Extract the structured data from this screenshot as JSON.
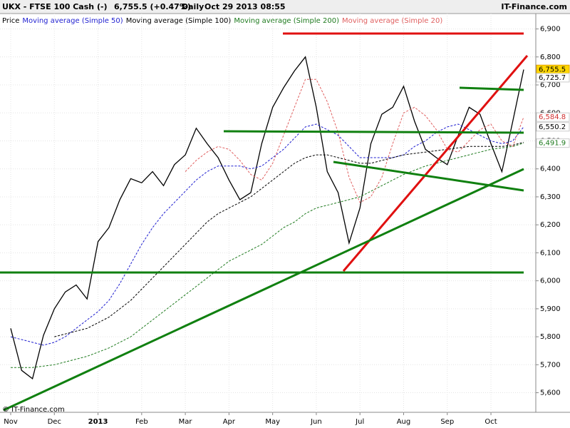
{
  "chart_data": {
    "type": "line",
    "title": "UKX - FTSE 100 Cash (-)",
    "quote": "6,755.5 (+0.47%)",
    "timeframe": "Daily",
    "date": "Oct 29 2013 08:55",
    "source": "IT-Finance.com",
    "copyright": "© IT-Finance.com",
    "categories": [
      "Nov",
      null,
      null,
      null,
      "Dec",
      null,
      null,
      null,
      "2013",
      null,
      null,
      null,
      "Feb",
      null,
      null,
      null,
      "Mar",
      null,
      null,
      null,
      "Apr",
      null,
      null,
      null,
      "May",
      null,
      null,
      null,
      "Jun",
      null,
      null,
      null,
      "Jul",
      null,
      null,
      null,
      "Aug",
      null,
      null,
      null,
      "Sep",
      null,
      null,
      null,
      "Oct",
      null,
      null,
      null
    ],
    "series": [
      {
        "name": "Price",
        "color": "#000000",
        "dashed": false,
        "values": [
          5830,
          5680,
          5650,
          5805,
          5900,
          5960,
          5985,
          5935,
          6140,
          6190,
          6290,
          6365,
          6350,
          6390,
          6340,
          6415,
          6450,
          6545,
          6490,
          6440,
          6360,
          6290,
          6315,
          6490,
          6620,
          6690,
          6750,
          6800,
          6620,
          6390,
          6315,
          6135,
          6260,
          6490,
          6595,
          6620,
          6695,
          6570,
          6470,
          6440,
          6415,
          6520,
          6620,
          6595,
          6490,
          6390,
          6570,
          6755
        ]
      },
      {
        "name": "Moving average (Simple 50)",
        "color": "#1f1fd0",
        "dashed": true,
        "values": [
          5800,
          5790,
          5780,
          5770,
          5780,
          5800,
          5830,
          5860,
          5890,
          5930,
          5990,
          6060,
          6130,
          6190,
          6240,
          6280,
          6320,
          6360,
          6390,
          6410,
          6410,
          6410,
          6400,
          6410,
          6440,
          6470,
          6510,
          6550,
          6560,
          6540,
          6520,
          6480,
          6440,
          6440,
          6440,
          6440,
          6450,
          6480,
          6500,
          6530,
          6550,
          6560,
          6540,
          6520,
          6500,
          6490,
          6500,
          6550
        ]
      },
      {
        "name": "Moving average (Simple 100)",
        "color": "#000000",
        "dashed": true,
        "values": [
          null,
          null,
          null,
          null,
          5800,
          5810,
          5820,
          5830,
          5850,
          5870,
          5900,
          5930,
          5970,
          6010,
          6050,
          6090,
          6130,
          6170,
          6210,
          6240,
          6260,
          6280,
          6300,
          6330,
          6360,
          6390,
          6420,
          6440,
          6450,
          6450,
          6440,
          6430,
          6420,
          6420,
          6430,
          6440,
          6450,
          6455,
          6460,
          6465,
          6470,
          6475,
          6480,
          6480,
          6480,
          6480,
          6485,
          6495
        ]
      },
      {
        "name": "Moving average (Simple 200)",
        "color": "#1e7a1e",
        "dashed": true,
        "values": [
          5690,
          5690,
          5690,
          5695,
          5700,
          5710,
          5720,
          5730,
          5745,
          5760,
          5780,
          5800,
          5830,
          5860,
          5890,
          5920,
          5950,
          5980,
          6010,
          6040,
          6070,
          6090,
          6110,
          6130,
          6160,
          6190,
          6210,
          6240,
          6260,
          6270,
          6280,
          6290,
          6300,
          6320,
          6340,
          6360,
          6380,
          6395,
          6410,
          6420,
          6430,
          6440,
          6450,
          6460,
          6470,
          6475,
          6480,
          6492
        ]
      },
      {
        "name": "Moving average (Simple 20)",
        "color": "#e06060",
        "dashed": true,
        "values": [
          null,
          null,
          null,
          null,
          null,
          null,
          null,
          null,
          null,
          null,
          null,
          null,
          null,
          null,
          null,
          null,
          6390,
          6430,
          6460,
          6480,
          6470,
          6430,
          6380,
          6360,
          6420,
          6520,
          6620,
          6720,
          6720,
          6640,
          6530,
          6370,
          6280,
          6300,
          6370,
          6490,
          6600,
          6620,
          6590,
          6540,
          6470,
          6460,
          6500,
          6540,
          6560,
          6500,
          6480,
          6585
        ]
      }
    ],
    "price_labels": [
      {
        "value": 6755.5,
        "label": "6,755.5",
        "color": "#000000",
        "fill": "#ffd700"
      },
      {
        "value": 6725.7,
        "label": "6,725.7",
        "color": "#000000",
        "fill": "#ffffff"
      },
      {
        "value": 6584.8,
        "label": "6,584.8",
        "color": "#d03030",
        "fill": "#ffffff"
      },
      {
        "value": 6550.2,
        "label": "6,550.2",
        "color": "#000000",
        "fill": "#ffffff"
      },
      {
        "value": 6491.9,
        "label": "6,491.9",
        "color": "#1e7a1e",
        "fill": "#ffffff"
      }
    ],
    "ylim": [
      5530,
      6955
    ],
    "yticks": [
      {
        "value": 5600,
        "label": "5,600"
      },
      {
        "value": 5700,
        "label": "5,700"
      },
      {
        "value": 5800,
        "label": "5,800"
      },
      {
        "value": 5900,
        "label": "5,900"
      },
      {
        "value": 6000,
        "label": "6,000"
      },
      {
        "value": 6100,
        "label": "6,100"
      },
      {
        "value": 6200,
        "label": "6,200"
      },
      {
        "value": 6300,
        "label": "6,300"
      },
      {
        "value": 6400,
        "label": "6,400"
      },
      {
        "value": 6500,
        "label": "6,500"
      },
      {
        "value": 6600,
        "label": "6,600"
      },
      {
        "value": 6700,
        "label": "6,700"
      },
      {
        "value": 6800,
        "label": "6,800"
      },
      {
        "value": 6900,
        "label": "6,900"
      }
    ],
    "grid": true
  }
}
